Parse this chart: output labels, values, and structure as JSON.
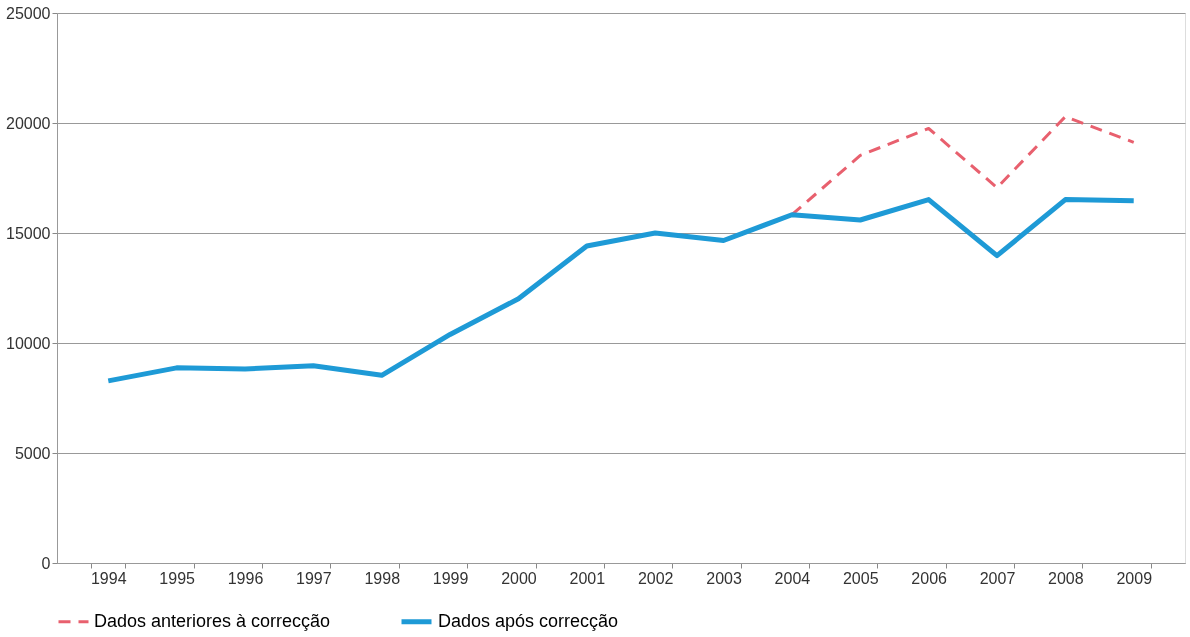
{
  "chart_data": {
    "type": "line",
    "categories": [
      "1994",
      "1995",
      "1996",
      "1997",
      "1998",
      "1999",
      "2000",
      "2001",
      "2002",
      "2003",
      "2004",
      "2005",
      "2006",
      "2007",
      "2008",
      "2009"
    ],
    "series": [
      {
        "name": "Dados anteriores à correcção",
        "color": "#e8606e",
        "line_style": "dashed",
        "values": [
          null,
          null,
          null,
          null,
          null,
          null,
          null,
          null,
          null,
          null,
          15830,
          18530,
          19750,
          17060,
          20290,
          19120
        ]
      },
      {
        "name": "Dados após correcção",
        "color": "#1e9ad6",
        "line_style": "solid",
        "values": [
          8280,
          8870,
          8820,
          8970,
          8530,
          10390,
          12010,
          14410,
          15000,
          14660,
          15830,
          15590,
          16520,
          13970,
          16520,
          16470
        ]
      }
    ],
    "ylim": [
      0,
      25000
    ],
    "yticks": [
      0,
      5000,
      10000,
      15000,
      20000,
      25000
    ],
    "grid": "y",
    "legend": "bottom",
    "marker": "none"
  }
}
